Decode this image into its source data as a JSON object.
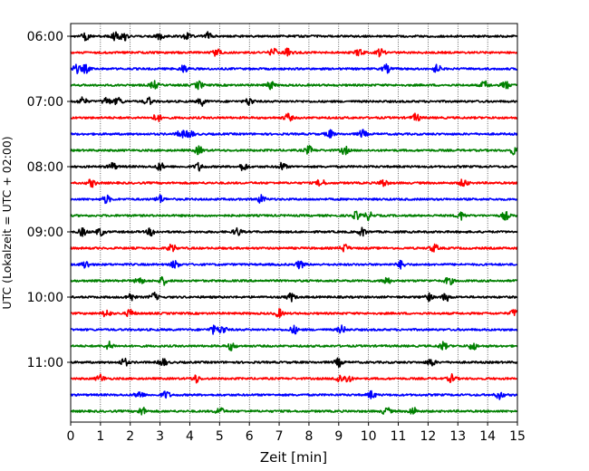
{
  "chart_data": {
    "type": "line",
    "title": "",
    "xlabel": "Zeit  [min]",
    "ylabel": "UTC (Lokalzeit = UTC + 02:00)",
    "xlim": [
      0,
      15
    ],
    "x_ticks": [
      "0",
      "1",
      "2",
      "3",
      "4",
      "5",
      "6",
      "7",
      "8",
      "9",
      "10",
      "11",
      "12",
      "13",
      "14",
      "15"
    ],
    "y_ticks": [
      {
        "label": "06:00",
        "trace": 0
      },
      {
        "label": "07:00",
        "trace": 4
      },
      {
        "label": "08:00",
        "trace": 8
      },
      {
        "label": "09:00",
        "trace": 12
      },
      {
        "label": "10:00",
        "trace": 16
      },
      {
        "label": "11:00",
        "trace": 20
      }
    ],
    "grid": "vertical dotted at each minute",
    "trace_interval_min": 15,
    "color_cycle": [
      "#000000",
      "#ff0000",
      "#0000ff",
      "#008000"
    ],
    "traces": [
      {
        "start": "06:00",
        "bursts": [
          0.5,
          1.5,
          1.8,
          3.0,
          3.9,
          4.6
        ]
      },
      {
        "start": "06:15",
        "bursts": [
          4.9,
          6.8,
          7.3,
          9.7,
          10.4
        ]
      },
      {
        "start": "06:30",
        "bursts": [
          0.2,
          0.5,
          3.8,
          10.6,
          12.3
        ]
      },
      {
        "start": "06:45",
        "bursts": [
          2.8,
          4.3,
          6.7,
          13.9,
          14.6
        ]
      },
      {
        "start": "07:00",
        "bursts": [
          0.4,
          1.2,
          1.6,
          2.6,
          4.4,
          6.0
        ]
      },
      {
        "start": "07:15",
        "bursts": [
          2.9,
          7.3,
          11.6
        ]
      },
      {
        "start": "07:30",
        "bursts": [
          3.7,
          4.0,
          8.7,
          9.8
        ]
      },
      {
        "start": "07:45",
        "bursts": [
          4.3,
          8.0,
          9.2,
          14.9
        ]
      },
      {
        "start": "08:00",
        "bursts": [
          1.4,
          3.0,
          4.3,
          5.8,
          7.1
        ]
      },
      {
        "start": "08:15",
        "bursts": [
          0.7,
          8.4,
          10.5,
          13.2
        ]
      },
      {
        "start": "08:30",
        "bursts": [
          1.2,
          3.0,
          6.4
        ]
      },
      {
        "start": "08:45",
        "bursts": [
          9.6,
          10.0,
          13.1,
          14.6
        ]
      },
      {
        "start": "09:00",
        "bursts": [
          0.4,
          1.0,
          2.7,
          5.6,
          9.8
        ]
      },
      {
        "start": "09:15",
        "bursts": [
          3.4,
          9.2,
          12.2
        ]
      },
      {
        "start": "09:30",
        "bursts": [
          0.5,
          3.5,
          7.7,
          11.1
        ]
      },
      {
        "start": "09:45",
        "bursts": [
          2.3,
          3.1,
          10.6,
          12.7
        ]
      },
      {
        "start": "10:00",
        "bursts": [
          2.0,
          2.8,
          7.4,
          12.0,
          12.6
        ]
      },
      {
        "start": "10:15",
        "bursts": [
          1.2,
          2.0,
          7.0,
          14.9
        ]
      },
      {
        "start": "10:30",
        "bursts": [
          4.8,
          5.1,
          7.5,
          9.1
        ]
      },
      {
        "start": "10:45",
        "bursts": [
          1.3,
          5.4,
          12.5,
          13.5
        ]
      },
      {
        "start": "11:00",
        "bursts": [
          1.8,
          3.1,
          9.0,
          12.1
        ]
      },
      {
        "start": "11:15",
        "bursts": [
          1.0,
          4.2,
          9.0,
          9.3,
          12.8
        ]
      },
      {
        "start": "11:30",
        "bursts": [
          2.3,
          3.2,
          10.1,
          14.4
        ]
      },
      {
        "start": "11:45",
        "bursts": [
          2.4,
          5.0,
          10.6,
          11.5
        ]
      }
    ]
  }
}
